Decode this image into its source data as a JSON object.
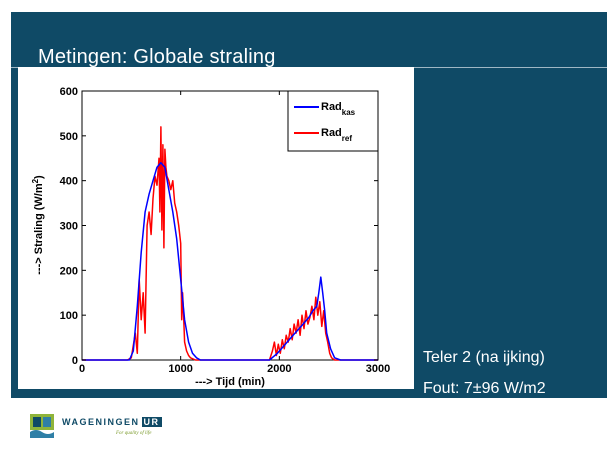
{
  "slide": {
    "title": "Metingen: Globale straling",
    "note_line1": "Teler 2 (na ijking)",
    "note_line2": "Fout: 7±96 W/m2",
    "colors": {
      "background": "#0f4a66",
      "text": "#ffffff"
    }
  },
  "logo": {
    "word": "WAGENINGEN",
    "ur": "UR",
    "tagline": "For quality of life"
  },
  "chart_data": {
    "type": "line",
    "xlabel": "---> Tijd (min)",
    "ylabel_prefix": "---> Straling (W/m",
    "ylabel_sup": "2",
    "ylabel_suffix": ")",
    "xlim": [
      0,
      3000
    ],
    "ylim": [
      0,
      600
    ],
    "xticks": [
      "0",
      "1000",
      "2000",
      "3000"
    ],
    "yticks": [
      "0",
      "100",
      "200",
      "300",
      "400",
      "500",
      "600"
    ],
    "grid": false,
    "legend_position": "top-right",
    "series": [
      {
        "name_main": "Rad",
        "name_sub": "kas",
        "color": "#0000ff",
        "x": [
          0,
          480,
          520,
          560,
          600,
          640,
          680,
          720,
          760,
          800,
          840,
          880,
          920,
          960,
          1000,
          1040,
          1080,
          1120,
          1160,
          1200,
          1250,
          1300,
          1900,
          1980,
          2060,
          2140,
          2200,
          2260,
          2300,
          2340,
          2380,
          2400,
          2420,
          2440,
          2460,
          2480,
          2520,
          2560,
          2620,
          3000
        ],
        "y": [
          0,
          0,
          20,
          120,
          240,
          330,
          370,
          400,
          430,
          440,
          430,
          380,
          330,
          270,
          180,
          90,
          40,
          15,
          5,
          0,
          0,
          0,
          0,
          15,
          35,
          55,
          70,
          85,
          95,
          110,
          120,
          150,
          185,
          150,
          110,
          60,
          25,
          5,
          0,
          0
        ]
      },
      {
        "name_main": "Rad",
        "name_sub": "ref",
        "color": "#ff0000",
        "x": [
          0,
          460,
          500,
          540,
          560,
          580,
          600,
          620,
          640,
          660,
          680,
          700,
          720,
          740,
          760,
          780,
          790,
          800,
          810,
          820,
          830,
          840,
          850,
          860,
          880,
          900,
          920,
          940,
          960,
          980,
          1000,
          1010,
          1020,
          1030,
          1040,
          1060,
          1080,
          1100,
          1150,
          1900,
          1930,
          1950,
          1970,
          1990,
          2010,
          2030,
          2050,
          2070,
          2090,
          2110,
          2130,
          2150,
          2170,
          2190,
          2210,
          2230,
          2250,
          2270,
          2290,
          2310,
          2330,
          2350,
          2370,
          2390,
          2410,
          2430,
          2450,
          2470,
          2490,
          2510,
          2530,
          2560,
          3000
        ],
        "y": [
          0,
          0,
          5,
          60,
          15,
          180,
          90,
          150,
          60,
          300,
          330,
          280,
          360,
          410,
          390,
          450,
          330,
          520,
          290,
          480,
          250,
          470,
          430,
          410,
          400,
          380,
          400,
          350,
          330,
          300,
          260,
          90,
          150,
          100,
          40,
          20,
          10,
          5,
          0,
          0,
          20,
          40,
          10,
          35,
          15,
          45,
          25,
          55,
          40,
          70,
          45,
          80,
          60,
          90,
          55,
          100,
          70,
          110,
          80,
          95,
          120,
          90,
          140,
          100,
          130,
          75,
          110,
          60,
          40,
          15,
          5,
          0,
          0
        ]
      }
    ]
  }
}
